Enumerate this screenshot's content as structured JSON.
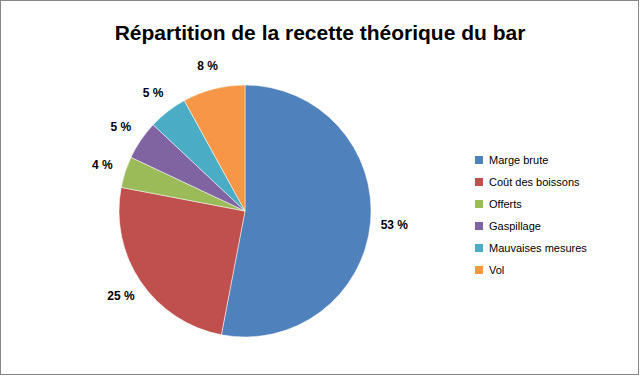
{
  "chart_data": {
    "type": "pie",
    "title": "Répartition de la recette théorique du bar",
    "categories": [
      "Marge brute",
      "Coût des boissons",
      "Offerts",
      "Gaspillage",
      "Mauvaises mesures",
      "Vol"
    ],
    "values": [
      53,
      25,
      4,
      5,
      5,
      8
    ],
    "value_labels": [
      "53 %",
      "25 %",
      "4 %",
      "5 %",
      "5 %",
      "8 %"
    ],
    "colors": [
      "#4f81bd",
      "#c0504d",
      "#9bbb59",
      "#8064a2",
      "#4bacc6",
      "#f79646"
    ],
    "data_labels": true,
    "legend": "right"
  }
}
